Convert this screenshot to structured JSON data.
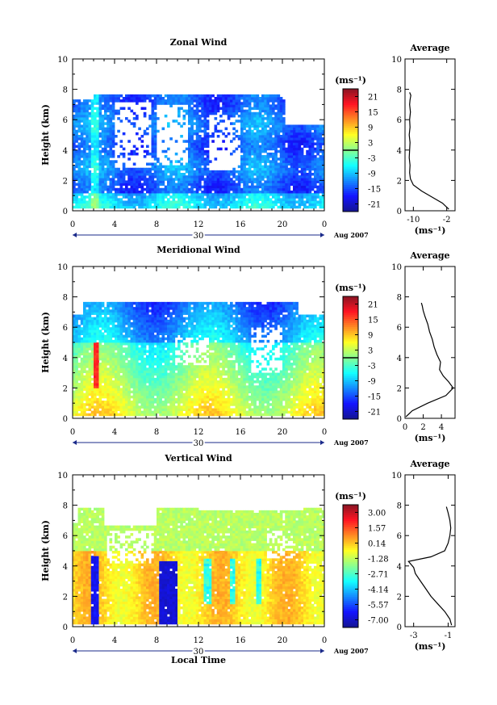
{
  "chart_data": [
    {
      "type": "heatmap",
      "title": "Zonal Wind",
      "ylabel": "Height (km)",
      "xlabel": "",
      "xlim": [
        0,
        24
      ],
      "ylim": [
        0,
        10
      ],
      "xticks": [
        "0",
        "4",
        "8",
        "12",
        "16",
        "20",
        "0"
      ],
      "yticks": [
        "0",
        "2",
        "4",
        "6",
        "8",
        "10"
      ],
      "date_label": "30",
      "month_label": "Aug 2007",
      "unit_label": "(ms⁻¹)",
      "colorbar": {
        "ticks": [
          "21",
          "15",
          "9",
          "3",
          "-3",
          "-9",
          "-15",
          "-21"
        ],
        "values": [
          21,
          15,
          9,
          3,
          -3,
          -9,
          -15,
          -21
        ],
        "range": [
          -24,
          24
        ]
      },
      "average": {
        "title": "Average",
        "xlabel": "(ms⁻¹)",
        "xlim": [
          -12,
          0
        ],
        "xticks": [
          "-10",
          "-2"
        ],
        "xtick_values": [
          -10,
          -2
        ],
        "yticks": [
          "0",
          "2",
          "4",
          "6",
          "8",
          "10"
        ],
        "profile_x": [
          -1.5,
          -3,
          -5.5,
          -8,
          -10,
          -10.7,
          -10.9,
          -10.8,
          -11,
          -10.9,
          -10.8,
          -11,
          -10.8,
          -10.9,
          -10.7,
          -10.9,
          -10.8,
          -10.6,
          -10.9
        ],
        "profile_h": [
          0.1,
          0.5,
          0.9,
          1.3,
          1.7,
          2.1,
          2.5,
          3.0,
          3.5,
          4.0,
          4.5,
          5.0,
          5.5,
          6.0,
          6.5,
          7.0,
          7.3,
          7.6,
          7.8
        ]
      }
    },
    {
      "type": "heatmap",
      "title": "Meridional Wind",
      "ylabel": "Height (km)",
      "xlabel": "",
      "xlim": [
        0,
        24
      ],
      "ylim": [
        0,
        10
      ],
      "xticks": [
        "0",
        "4",
        "8",
        "12",
        "16",
        "20",
        "0"
      ],
      "yticks": [
        "0",
        "2",
        "4",
        "6",
        "8",
        "10"
      ],
      "date_label": "30",
      "month_label": "Aug 2007",
      "unit_label": "(ms⁻¹)",
      "colorbar": {
        "ticks": [
          "21",
          "15",
          "9",
          "3",
          "-3",
          "-9",
          "-15",
          "-21"
        ],
        "values": [
          21,
          15,
          9,
          3,
          -3,
          -9,
          -15,
          -21
        ],
        "range": [
          -24,
          24
        ]
      },
      "average": {
        "title": "Average",
        "xlabel": "(ms⁻¹)",
        "xlim": [
          0,
          5.5
        ],
        "xticks": [
          "0",
          "2",
          "4"
        ],
        "xtick_values": [
          0,
          2,
          4
        ],
        "yticks": [
          "0",
          "2",
          "4",
          "6",
          "8",
          "10"
        ],
        "profile_x": [
          0.1,
          0.8,
          2.5,
          4.5,
          5.3,
          4.8,
          4.2,
          3.8,
          3.9,
          3.5,
          3.2,
          3.0,
          2.7,
          2.5,
          2.2,
          2.0,
          1.9,
          1.8
        ],
        "profile_h": [
          0.1,
          0.5,
          1.0,
          1.5,
          2.0,
          2.4,
          2.8,
          3.2,
          3.7,
          4.2,
          4.7,
          5.2,
          5.7,
          6.2,
          6.7,
          7.1,
          7.4,
          7.6
        ]
      }
    },
    {
      "type": "heatmap",
      "title": "Vertical Wind",
      "ylabel": "Height (km)",
      "xlabel": "Local Time",
      "xlim": [
        0,
        24
      ],
      "ylim": [
        0,
        10
      ],
      "xticks": [
        "0",
        "4",
        "8",
        "12",
        "16",
        "20",
        "0"
      ],
      "yticks": [
        "0",
        "2",
        "4",
        "6",
        "8",
        "10"
      ],
      "date_label": "30",
      "month_label": "Aug 2007",
      "unit_label": "(ms⁻¹)",
      "colorbar": {
        "ticks": [
          "3.00",
          "1.57",
          "0.14",
          "-1.28",
          "-2.71",
          "-4.14",
          "-5.57",
          "-7.00"
        ],
        "values": [
          3.0,
          1.57,
          0.14,
          -1.28,
          -2.71,
          -4.14,
          -5.57,
          -7.0
        ],
        "range": [
          -7.71,
          3.71
        ]
      },
      "average": {
        "title": "Average",
        "xlabel": "(ms⁻¹)",
        "xlim": [
          -3.5,
          -0.6
        ],
        "xticks": [
          "-3",
          "-1"
        ],
        "xtick_values": [
          -3,
          -1
        ],
        "yticks": [
          "0",
          "2",
          "4",
          "6",
          "8",
          "10"
        ],
        "profile_x": [
          -0.8,
          -0.9,
          -1.2,
          -1.6,
          -2.0,
          -2.3,
          -2.6,
          -2.9,
          -3.0,
          -3.3,
          -2.0,
          -1.2,
          -1.0,
          -0.9,
          -0.85,
          -0.9,
          -1.0,
          -1.1
        ],
        "profile_h": [
          0.1,
          0.5,
          1.0,
          1.5,
          2.0,
          2.5,
          3.0,
          3.5,
          3.9,
          4.3,
          4.6,
          5.0,
          5.5,
          6.0,
          6.5,
          7.0,
          7.5,
          7.9
        ]
      }
    }
  ]
}
